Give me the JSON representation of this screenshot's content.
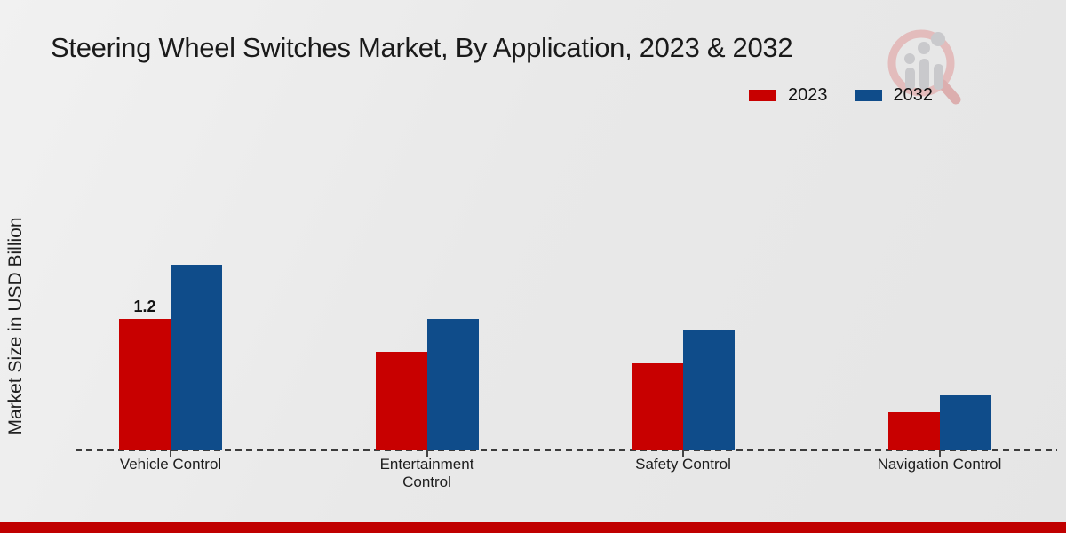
{
  "title": "Steering Wheel Switches Market, By Application, 2023 & 2032",
  "y_axis_label": "Market Size in USD Billion",
  "legend": {
    "position": "top-right",
    "items": [
      {
        "label": "2023",
        "color": "#c80000"
      },
      {
        "label": "2032",
        "color": "#0f4c8a"
      }
    ]
  },
  "colors": {
    "series_2023": "#c80000",
    "series_2032": "#0f4c8a",
    "footer_band": "#c00000",
    "baseline": "#3c3c3c",
    "background": "#e9e9e9",
    "title_text": "#1a1a1a"
  },
  "logo": {
    "icon": "magnifier-bar-chart-logo"
  },
  "chart_data": {
    "type": "bar",
    "title": "Steering Wheel Switches Market, By Application, 2023 & 2032",
    "xlabel": "",
    "ylabel": "Market Size in USD Billion",
    "unit": "USD Billion",
    "categories": [
      "Vehicle Control",
      "Entertainment Control",
      "Safety Control",
      "Navigation Control"
    ],
    "series": [
      {
        "name": "2023",
        "color": "#c80000",
        "values": [
          1.2,
          0.9,
          0.8,
          0.35
        ],
        "data_labels": [
          "1.2",
          "",
          "",
          ""
        ]
      },
      {
        "name": "2032",
        "color": "#0f4c8a",
        "values": [
          1.7,
          1.2,
          1.1,
          0.5
        ],
        "data_labels": [
          "",
          "",
          "",
          ""
        ]
      }
    ],
    "ylim": [
      0,
      2.0
    ],
    "grid": false,
    "axis_style": "dashed-baseline-only",
    "legend_position": "top-right"
  }
}
